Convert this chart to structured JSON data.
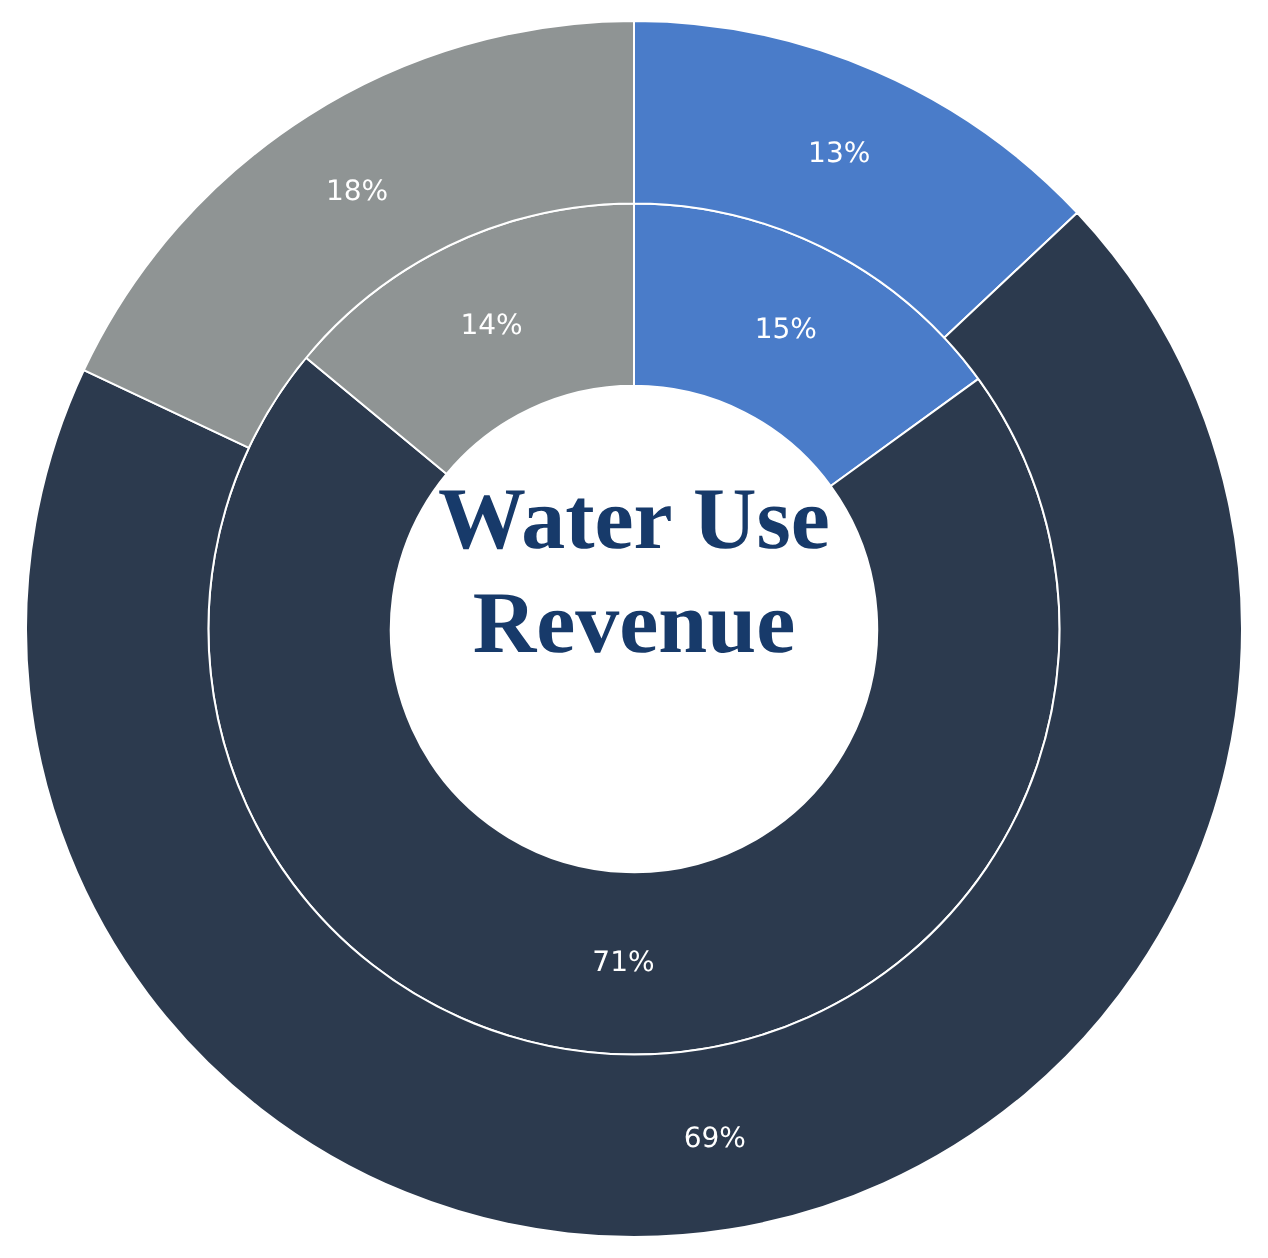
{
  "chart_data": {
    "type": "donut",
    "title": "Water Use Revenue",
    "categories": [
      null,
      null,
      null
    ],
    "series": [
      {
        "colors": [
          "#4a7cc9",
          "#2c3a4e",
          "#8f9494"
        ],
        "values": [
          13,
          69,
          18
        ],
        "value_labels": [
          "13%",
          "69%",
          "18%"
        ]
      },
      {
        "colors": [
          "#4a7cc9",
          "#2c3a4e",
          "#8f9494"
        ],
        "values": [
          15,
          71,
          14
        ],
        "value_labels": [
          "15%",
          "71%",
          "14%"
        ]
      }
    ],
    "legend": false
  }
}
